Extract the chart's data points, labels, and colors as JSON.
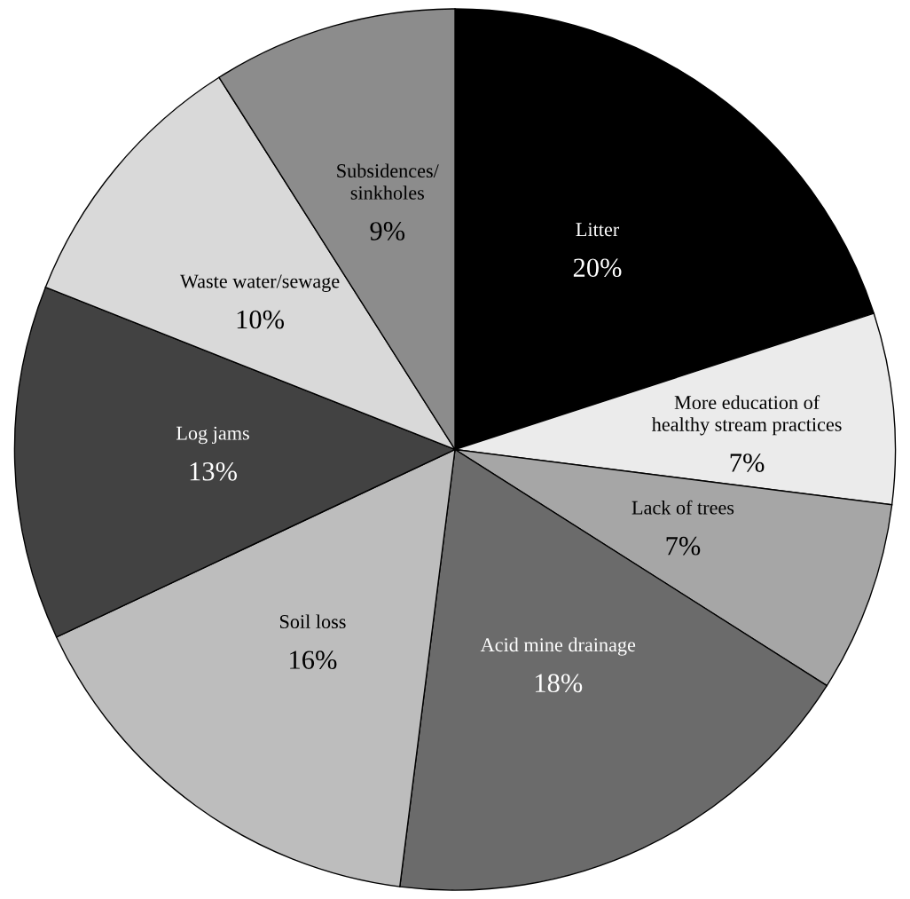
{
  "chart_data": {
    "type": "pie",
    "categories": [
      "Litter",
      "More education of\nhealthy stream practices",
      "Lack of trees",
      "Acid mine drainage",
      "Soil loss",
      "Log jams",
      "Waste water/sewage",
      "Subsidences/\nsinkholes"
    ],
    "values": [
      20,
      7,
      7,
      18,
      16,
      13,
      10,
      9
    ],
    "colors": [
      "#000000",
      "#ebebeb",
      "#a6a6a6",
      "#6b6b6b",
      "#bdbdbd",
      "#424242",
      "#d9d9d9",
      "#8c8c8c"
    ],
    "value_labels": [
      "20%",
      "7%",
      "7%",
      "18%",
      "16%",
      "13%",
      "10%",
      "9%"
    ],
    "legend": false
  }
}
